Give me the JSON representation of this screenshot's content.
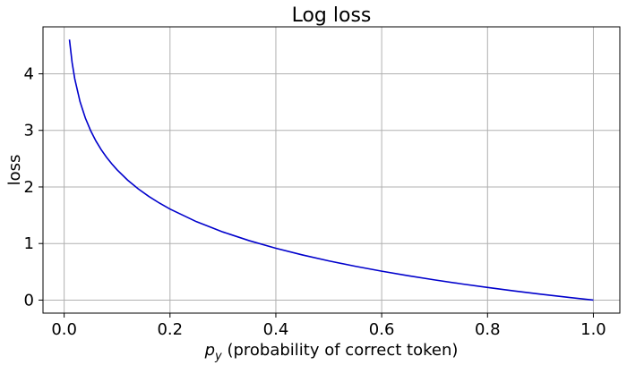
{
  "chart_data": {
    "type": "line",
    "title": "Log loss",
    "xlabel_main": "p",
    "xlabel_sub": "y",
    "xlabel_rest": " (probability of correct token)",
    "ylabel": "loss",
    "xlim": [
      -0.04,
      1.05
    ],
    "ylim": [
      -0.23,
      4.83
    ],
    "grid": true,
    "xticks": [
      0.0,
      0.2,
      0.4,
      0.6,
      0.8,
      1.0
    ],
    "xtick_labels": [
      "0.0",
      "0.2",
      "0.4",
      "0.6",
      "0.8",
      "1.0"
    ],
    "yticks": [
      0,
      1,
      2,
      3,
      4
    ],
    "ytick_labels": [
      "0",
      "1",
      "2",
      "3",
      "4"
    ],
    "x": [
      0.01,
      0.015,
      0.02,
      0.03,
      0.04,
      0.05,
      0.06,
      0.07,
      0.08,
      0.09,
      0.1,
      0.12,
      0.14,
      0.16,
      0.18,
      0.2,
      0.25,
      0.3,
      0.35,
      0.4,
      0.45,
      0.5,
      0.55,
      0.6,
      0.65,
      0.7,
      0.75,
      0.8,
      0.85,
      0.9,
      0.95,
      1.0
    ],
    "y": [
      4.605,
      4.2,
      3.912,
      3.507,
      3.219,
      2.996,
      2.813,
      2.659,
      2.526,
      2.408,
      2.303,
      2.12,
      1.966,
      1.833,
      1.715,
      1.609,
      1.386,
      1.204,
      1.05,
      0.916,
      0.799,
      0.693,
      0.598,
      0.511,
      0.431,
      0.357,
      0.288,
      0.223,
      0.163,
      0.105,
      0.051,
      0.0
    ],
    "line_color": "#0000cc"
  }
}
